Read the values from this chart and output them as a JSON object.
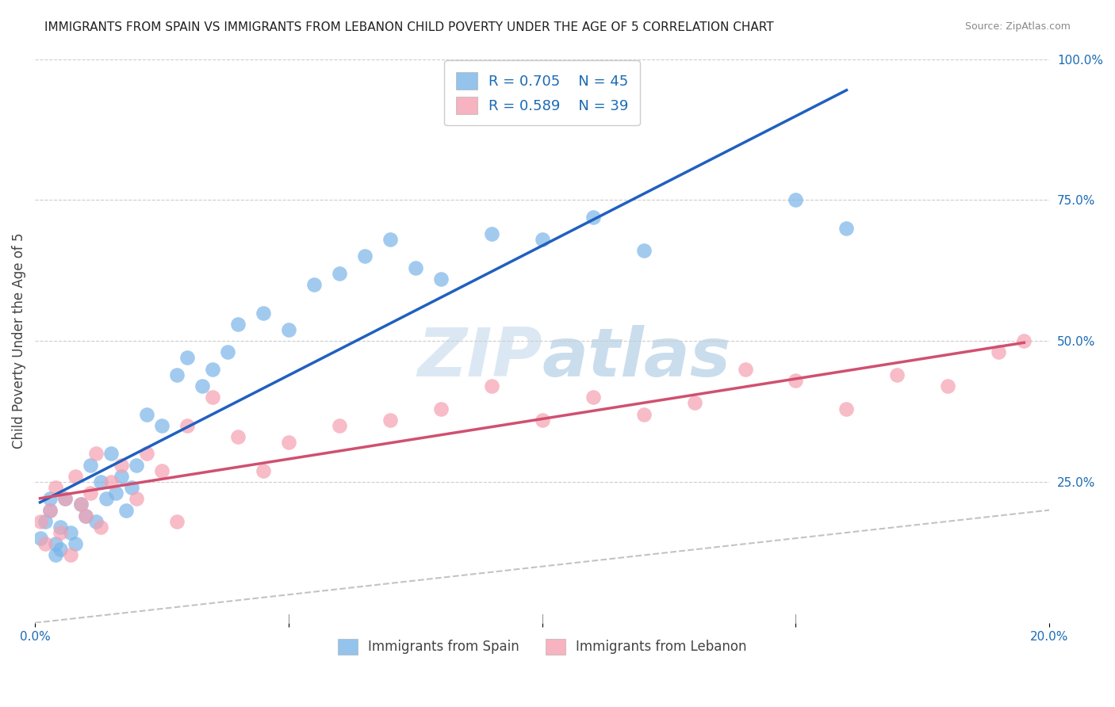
{
  "title": "IMMIGRANTS FROM SPAIN VS IMMIGRANTS FROM LEBANON CHILD POVERTY UNDER THE AGE OF 5 CORRELATION CHART",
  "source": "Source: ZipAtlas.com",
  "ylabel": "Child Poverty Under the Age of 5",
  "legend_spain_label": "R = 0.705    N = 45",
  "legend_lebanon_label": "R = 0.589    N = 39",
  "spain_color": "#7ab4e8",
  "lebanon_color": "#f5a0b0",
  "spain_line_color": "#2060c0",
  "lebanon_line_color": "#d05070",
  "xlim": [
    0,
    0.2
  ],
  "ylim": [
    0,
    1.0
  ],
  "background_color": "#ffffff",
  "grid_color": "#cccccc",
  "spain_x": [
    0.001,
    0.002,
    0.003,
    0.003,
    0.004,
    0.004,
    0.005,
    0.005,
    0.006,
    0.007,
    0.008,
    0.009,
    0.01,
    0.011,
    0.012,
    0.013,
    0.014,
    0.015,
    0.016,
    0.017,
    0.018,
    0.019,
    0.02,
    0.022,
    0.025,
    0.028,
    0.03,
    0.033,
    0.035,
    0.038,
    0.04,
    0.045,
    0.05,
    0.055,
    0.06,
    0.065,
    0.07,
    0.075,
    0.08,
    0.09,
    0.1,
    0.11,
    0.12,
    0.15,
    0.16
  ],
  "spain_y": [
    0.15,
    0.18,
    0.2,
    0.22,
    0.12,
    0.14,
    0.13,
    0.17,
    0.22,
    0.16,
    0.14,
    0.21,
    0.19,
    0.28,
    0.18,
    0.25,
    0.22,
    0.3,
    0.23,
    0.26,
    0.2,
    0.24,
    0.28,
    0.37,
    0.35,
    0.44,
    0.47,
    0.42,
    0.45,
    0.48,
    0.53,
    0.55,
    0.52,
    0.6,
    0.62,
    0.65,
    0.68,
    0.63,
    0.61,
    0.69,
    0.68,
    0.72,
    0.66,
    0.75,
    0.7
  ],
  "lebanon_x": [
    0.001,
    0.002,
    0.003,
    0.004,
    0.005,
    0.006,
    0.007,
    0.008,
    0.009,
    0.01,
    0.011,
    0.012,
    0.013,
    0.015,
    0.017,
    0.02,
    0.022,
    0.025,
    0.028,
    0.03,
    0.035,
    0.04,
    0.045,
    0.05,
    0.06,
    0.07,
    0.08,
    0.09,
    0.1,
    0.11,
    0.12,
    0.13,
    0.14,
    0.15,
    0.16,
    0.17,
    0.18,
    0.19,
    0.195
  ],
  "lebanon_y": [
    0.18,
    0.14,
    0.2,
    0.24,
    0.16,
    0.22,
    0.12,
    0.26,
    0.21,
    0.19,
    0.23,
    0.3,
    0.17,
    0.25,
    0.28,
    0.22,
    0.3,
    0.27,
    0.18,
    0.35,
    0.4,
    0.33,
    0.27,
    0.32,
    0.35,
    0.36,
    0.38,
    0.42,
    0.36,
    0.4,
    0.37,
    0.39,
    0.45,
    0.43,
    0.38,
    0.44,
    0.42,
    0.48,
    0.5
  ]
}
